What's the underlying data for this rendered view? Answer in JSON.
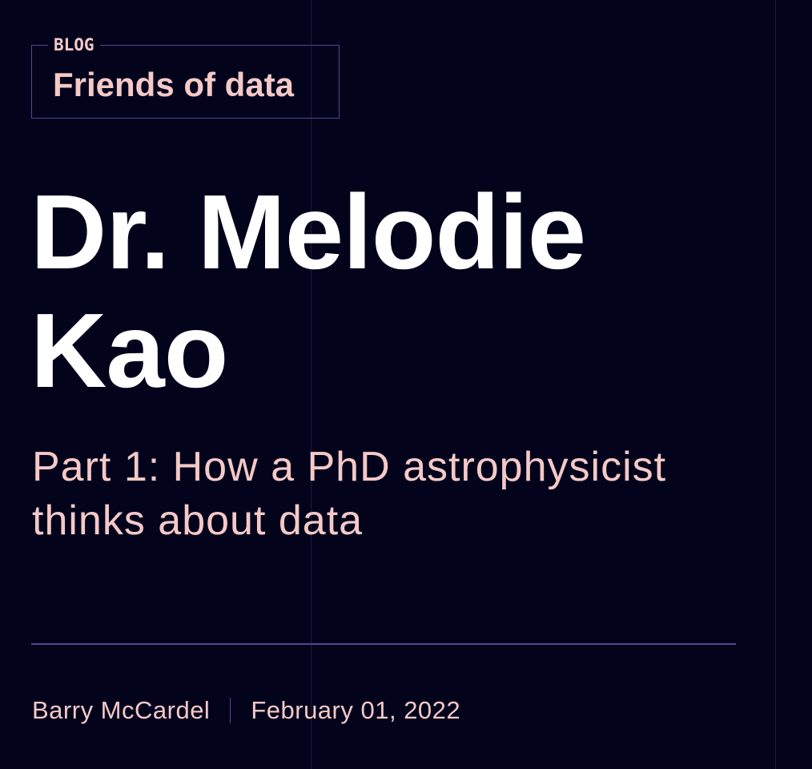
{
  "header": {
    "category": "BLOG",
    "series": "Friends of data"
  },
  "article": {
    "title": "Dr. Melodie Kao",
    "subtitle": "Part 1: How a PhD astrophysicist thinks about data",
    "author": "Barry McCardel",
    "date": "February 01, 2022"
  },
  "colors": {
    "background": "#03041c",
    "accent_text": "#f4c9c7",
    "title_text": "#ffffff",
    "rule": "#4e4890",
    "gridline": "#1b1c3d"
  }
}
